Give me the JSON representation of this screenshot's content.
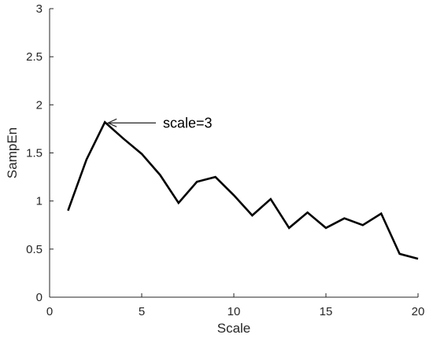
{
  "chart_data": {
    "type": "line",
    "title": "",
    "xlabel": "Scale",
    "ylabel": "SampEn",
    "xlim": [
      0,
      20
    ],
    "ylim": [
      0,
      3
    ],
    "xticks": [
      0,
      5,
      10,
      15,
      20
    ],
    "yticks": [
      0,
      0.5,
      1,
      1.5,
      2,
      2.5,
      3
    ],
    "xtick_labels": [
      "0",
      "5",
      "10",
      "15",
      "20"
    ],
    "ytick_labels": [
      "0",
      "0.5",
      "1",
      "1.5",
      "2",
      "2.5",
      "3"
    ],
    "grid": false,
    "legend": "none",
    "series": [
      {
        "x": [
          1,
          2,
          3,
          4,
          5,
          6,
          7,
          8,
          9,
          10,
          11,
          12,
          13,
          14,
          15,
          16,
          17,
          18,
          19,
          20
        ],
        "values": [
          0.9,
          1.43,
          1.82,
          1.65,
          1.49,
          1.27,
          0.98,
          1.2,
          1.25,
          1.06,
          0.85,
          1.02,
          0.72,
          0.88,
          0.72,
          0.82,
          0.75,
          0.87,
          0.45,
          0.4
        ],
        "color": "#000000"
      }
    ],
    "annotations": [
      {
        "text": "scale=3",
        "x": 3,
        "y": 1.82
      }
    ]
  }
}
